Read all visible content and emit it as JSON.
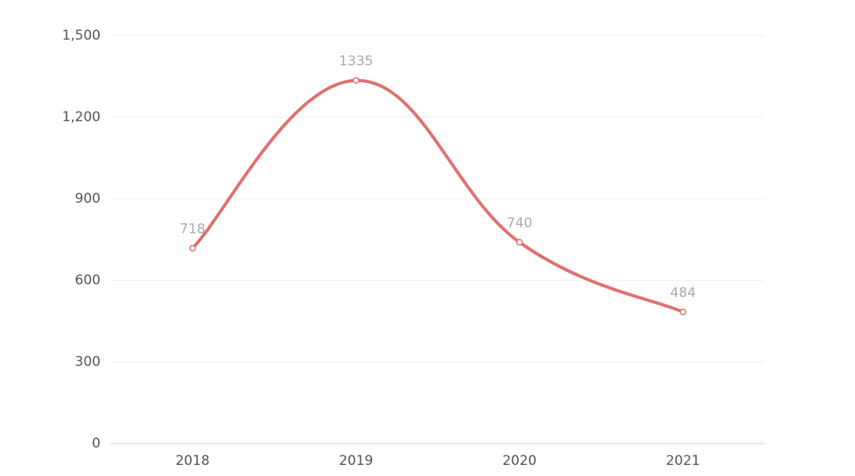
{
  "chart_data": {
    "type": "line",
    "categories": [
      "2018",
      "2019",
      "2020",
      "2021"
    ],
    "values": [
      718,
      1335,
      740,
      484
    ],
    "color": "#e07070",
    "smooth": true,
    "ylim": [
      0,
      1500
    ],
    "yticks": [
      0,
      300,
      600,
      900,
      {
        "value": 1200,
        "label": "1,200"
      },
      {
        "value": 1500,
        "label": "1,500"
      }
    ],
    "grid": true
  }
}
